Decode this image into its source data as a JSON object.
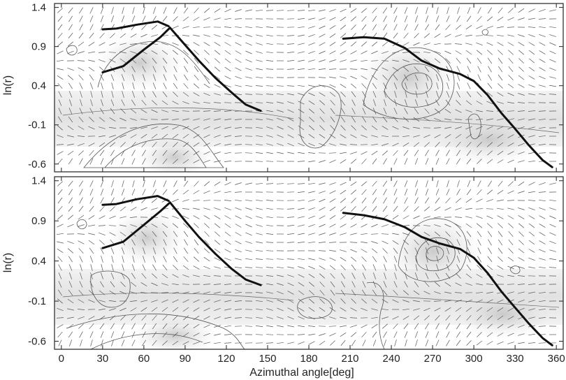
{
  "chart_data": [
    {
      "type": "line",
      "panel": "top",
      "ylabel": "ln(r)",
      "xlim": [
        -5,
        365
      ],
      "ylim": [
        -0.7,
        1.45
      ],
      "y_ticks": [
        1.4,
        0.9,
        0.4,
        -0.1,
        -0.6
      ],
      "y_tick_labels": [
        "1.4",
        "0.9",
        "0.4",
        "-0.1",
        "-0.6"
      ],
      "series": [
        {
          "x": [
            30,
            40,
            55,
            70,
            78
          ],
          "y": [
            1.12,
            1.13,
            1.18,
            1.22,
            1.16
          ]
        },
        {
          "x": [
            30,
            45,
            60,
            72,
            79
          ],
          "y": [
            0.57,
            0.65,
            0.86,
            1.02,
            1.14
          ]
        },
        {
          "x": [
            79,
            90,
            100,
            112,
            124,
            134,
            145
          ],
          "y": [
            1.14,
            0.92,
            0.72,
            0.5,
            0.31,
            0.16,
            0.08
          ]
        },
        {
          "x": [
            205,
            220,
            235,
            250,
            262,
            275,
            290,
            300,
            310,
            320,
            330,
            340,
            350,
            357
          ],
          "y": [
            1.0,
            1.02,
            1.0,
            0.88,
            0.72,
            0.62,
            0.55,
            0.46,
            0.28,
            0.05,
            -0.15,
            -0.36,
            -0.55,
            -0.64
          ]
        }
      ]
    },
    {
      "type": "line",
      "panel": "bottom",
      "xlabel": "Azimuthal angle[deg]",
      "ylabel": "ln(r)",
      "xlim": [
        -5,
        365
      ],
      "ylim": [
        -0.7,
        1.45
      ],
      "x_ticks": [
        0,
        30,
        60,
        90,
        120,
        150,
        180,
        210,
        240,
        270,
        300,
        330,
        360
      ],
      "x_tick_labels": [
        "0",
        "30",
        "60",
        "90",
        "120",
        "150",
        "180",
        "210",
        "240",
        "270",
        "300",
        "330",
        "360"
      ],
      "y_ticks": [
        1.4,
        0.9,
        0.4,
        -0.1,
        -0.6
      ],
      "y_tick_labels": [
        "1.4",
        "0.9",
        "0.4",
        "-0.1",
        "-0.6"
      ],
      "series": [
        {
          "x": [
            30,
            40,
            55,
            70,
            78
          ],
          "y": [
            1.1,
            1.11,
            1.17,
            1.21,
            1.15
          ]
        },
        {
          "x": [
            30,
            45,
            60,
            72,
            79
          ],
          "y": [
            0.56,
            0.64,
            0.85,
            1.02,
            1.13
          ]
        },
        {
          "x": [
            79,
            90,
            100,
            112,
            124,
            134,
            145
          ],
          "y": [
            1.13,
            0.9,
            0.7,
            0.49,
            0.3,
            0.17,
            0.1
          ]
        },
        {
          "x": [
            205,
            220,
            235,
            250,
            262,
            275,
            290,
            300,
            310,
            320,
            330,
            340,
            350,
            357
          ],
          "y": [
            1.0,
            0.97,
            0.92,
            0.82,
            0.7,
            0.62,
            0.55,
            0.44,
            0.25,
            0.02,
            -0.18,
            -0.38,
            -0.56,
            -0.65
          ]
        }
      ]
    }
  ]
}
